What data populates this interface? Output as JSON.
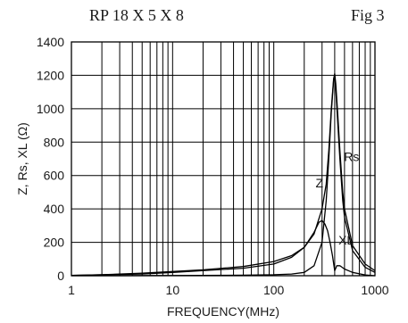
{
  "chart_data": {
    "type": "line",
    "title": "RP 18 X 5 X 8",
    "figure_label": "Fig 3",
    "xlabel": "FREQUENCY(MHz)",
    "ylabel": "Z, Rs, XL (Ω)",
    "xscale": "log",
    "xlim": [
      1,
      1000
    ],
    "ylim": [
      0,
      1400
    ],
    "xticks": [
      "1",
      "10",
      "100",
      "1000"
    ],
    "yticks": [
      "0",
      "200",
      "400",
      "600",
      "800",
      "1000",
      "1200",
      "1400"
    ],
    "grid": true,
    "series": [
      {
        "name": "Z",
        "x": [
          1,
          2,
          5,
          10,
          20,
          50,
          100,
          150,
          200,
          250,
          300,
          330,
          350,
          370,
          390,
          400,
          410,
          430,
          450,
          480,
          500,
          600,
          800,
          1000
        ],
        "y": [
          2,
          6,
          15,
          25,
          35,
          55,
          85,
          120,
          170,
          250,
          400,
          550,
          750,
          1000,
          1180,
          1210,
          1150,
          950,
          750,
          500,
          400,
          180,
          70,
          30
        ]
      },
      {
        "name": "Rs",
        "x": [
          1,
          10,
          50,
          100,
          150,
          200,
          250,
          300,
          330,
          350,
          370,
          390,
          400,
          410,
          430,
          450,
          480,
          500,
          600,
          800,
          1000
        ],
        "y": [
          0,
          1,
          3,
          6,
          10,
          20,
          60,
          200,
          450,
          700,
          980,
          1170,
          1200,
          1120,
          900,
          700,
          450,
          350,
          150,
          50,
          20
        ]
      },
      {
        "name": "XL",
        "x": [
          1,
          5,
          10,
          50,
          100,
          150,
          200,
          250,
          280,
          300,
          320,
          340,
          360,
          380,
          400,
          420,
          450,
          500,
          600,
          800,
          1000
        ],
        "y": [
          2,
          10,
          20,
          45,
          70,
          110,
          170,
          260,
          320,
          330,
          310,
          270,
          200,
          120,
          30,
          60,
          60,
          40,
          20,
          5,
          0
        ]
      }
    ]
  }
}
